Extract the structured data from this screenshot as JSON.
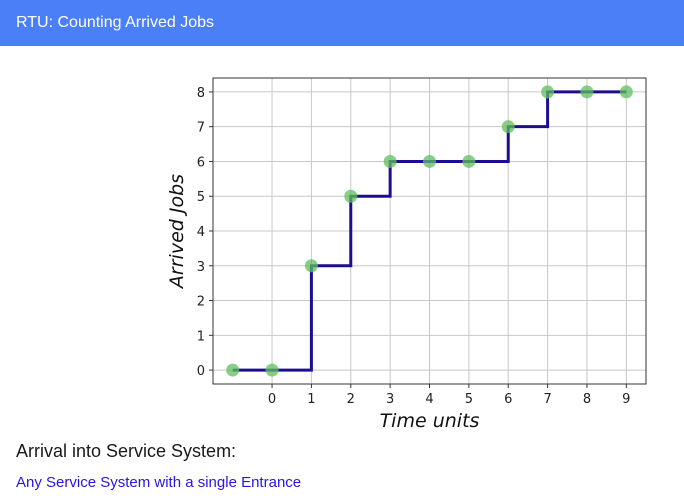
{
  "header": {
    "title": "RTU: Counting Arrived Jobs"
  },
  "colors": {
    "header_bg": "#4a7ff7",
    "line": "#1c0e8f",
    "marker": "#5fbf5f",
    "link": "#2a14e0"
  },
  "chart_data": {
    "type": "line",
    "step": true,
    "x": [
      -1,
      0,
      1,
      2,
      3,
      4,
      5,
      6,
      7,
      8,
      9
    ],
    "y": [
      0,
      0,
      3,
      5,
      6,
      6,
      6,
      7,
      8,
      8,
      8
    ],
    "xlabel": "Time units",
    "ylabel": "Arrived Jobs",
    "x_ticks": [
      0,
      1,
      2,
      3,
      4,
      5,
      6,
      7,
      8,
      9
    ],
    "y_ticks": [
      0,
      1,
      2,
      3,
      4,
      5,
      6,
      7,
      8
    ],
    "xlim": [
      -1.5,
      9.5
    ],
    "ylim": [
      -0.4,
      8.4
    ],
    "grid": true
  },
  "section": {
    "title": "Arrival into Service System:",
    "subtitle": "Any Service System with a single Entrance"
  }
}
